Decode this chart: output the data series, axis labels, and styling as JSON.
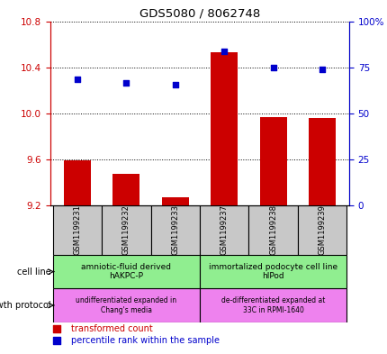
{
  "title": "GDS5080 / 8062748",
  "samples": [
    "GSM1199231",
    "GSM1199232",
    "GSM1199233",
    "GSM1199237",
    "GSM1199238",
    "GSM1199239"
  ],
  "transformed_counts": [
    9.59,
    9.47,
    9.27,
    10.53,
    9.97,
    9.96
  ],
  "percentile_ranks": [
    68.5,
    66.5,
    65.5,
    83.5,
    75.0,
    74.0
  ],
  "ylim_left": [
    9.2,
    10.8
  ],
  "ylim_right": [
    0,
    100
  ],
  "yticks_left": [
    9.2,
    9.6,
    10.0,
    10.4,
    10.8
  ],
  "yticks_right": [
    0,
    25,
    50,
    75,
    100
  ],
  "ytick_labels_right": [
    "0",
    "25",
    "50",
    "75",
    "100%"
  ],
  "bar_color": "#CC0000",
  "dot_color": "#0000CC",
  "bar_base": 9.2,
  "left_tick_color": "#CC0000",
  "right_tick_color": "#0000CC",
  "cell_line_labels": [
    "amniotic-fluid derived\nhAKPC-P",
    "immortalized podocyte cell line\nhIPod"
  ],
  "cell_line_color": "#90EE90",
  "growth_protocol_labels": [
    "undifferentiated expanded in\nChang's media",
    "de-differentiated expanded at\n33C in RPMI-1640"
  ],
  "growth_protocol_color": "#EE82EE",
  "sample_box_color": "#C8C8C8",
  "legend_bar_label": "transformed count",
  "legend_dot_label": "percentile rank within the sample",
  "cell_line_row_label": "cell line",
  "growth_protocol_row_label": "growth protocol"
}
